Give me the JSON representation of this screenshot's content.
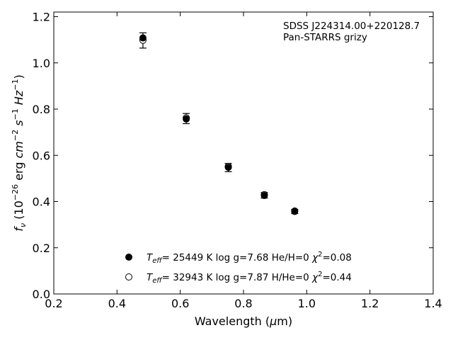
{
  "chart_data": {
    "type": "scatter",
    "xlim": [
      0.2,
      1.4
    ],
    "ylim": [
      0.0,
      1.22
    ],
    "x_ticks": [
      0.2,
      0.4,
      0.6,
      0.8,
      1.0,
      1.2,
      1.4
    ],
    "y_ticks": [
      0.0,
      0.2,
      0.4,
      0.6,
      0.8,
      1.0,
      1.2
    ],
    "x_tick_labels": [
      "0.2",
      "0.4",
      "0.6",
      "0.8",
      "1.0",
      "1.2",
      "1.4"
    ],
    "y_tick_labels": [
      "0.0",
      "0.2",
      "0.4",
      "0.6",
      "0.8",
      "1.0",
      "1.2"
    ],
    "xlabel": {
      "main": "Wavelength (",
      "mu": "μ",
      "rest": "m)"
    },
    "ylabel": {
      "f": "f",
      "nu": "ν",
      "open": " (10",
      "exp": "−26",
      "erg": " erg ",
      "cm": "cm",
      "cm_exp": "−2",
      "s": " s",
      "s_exp": "−1",
      "hz": " Hz",
      "hz_exp": "−1",
      "close": ")"
    },
    "annotation": [
      "SDSS J224314.00+220128.7",
      "Pan-STARRS grizy"
    ],
    "grid": false,
    "observed": {
      "x": [
        0.482,
        0.619,
        0.752,
        0.866,
        0.962
      ],
      "y": [
        1.097,
        0.759,
        0.547,
        0.427,
        0.357
      ],
      "y_err": [
        0.033,
        0.022,
        0.018,
        0.012,
        0.009
      ]
    },
    "series": [
      {
        "marker": "filled-circle",
        "x": [
          0.482,
          0.619,
          0.752,
          0.866,
          0.962
        ],
        "y": [
          1.108,
          0.757,
          0.548,
          0.426,
          0.357
        ]
      },
      {
        "marker": "open-circle",
        "x": [
          0.482,
          0.619,
          0.752,
          0.866,
          0.962
        ],
        "y": [
          1.098,
          0.762,
          0.552,
          0.43,
          0.359
        ]
      }
    ],
    "legend": [
      {
        "marker": "filled-circle",
        "T": "T",
        "eff": "eff",
        "text1": "= 25449 K  log g=7.68  He/H=0  ",
        "chi": "χ",
        "chi_exp": "2",
        "text2": "=0.08"
      },
      {
        "marker": "open-circle",
        "T": "T",
        "eff": "eff",
        "text1": "= 32943 K  log g=7.87  H/He=0  ",
        "chi": "χ",
        "chi_exp": "2",
        "text2": "=0.44"
      }
    ],
    "legend_position": "lower-center"
  }
}
